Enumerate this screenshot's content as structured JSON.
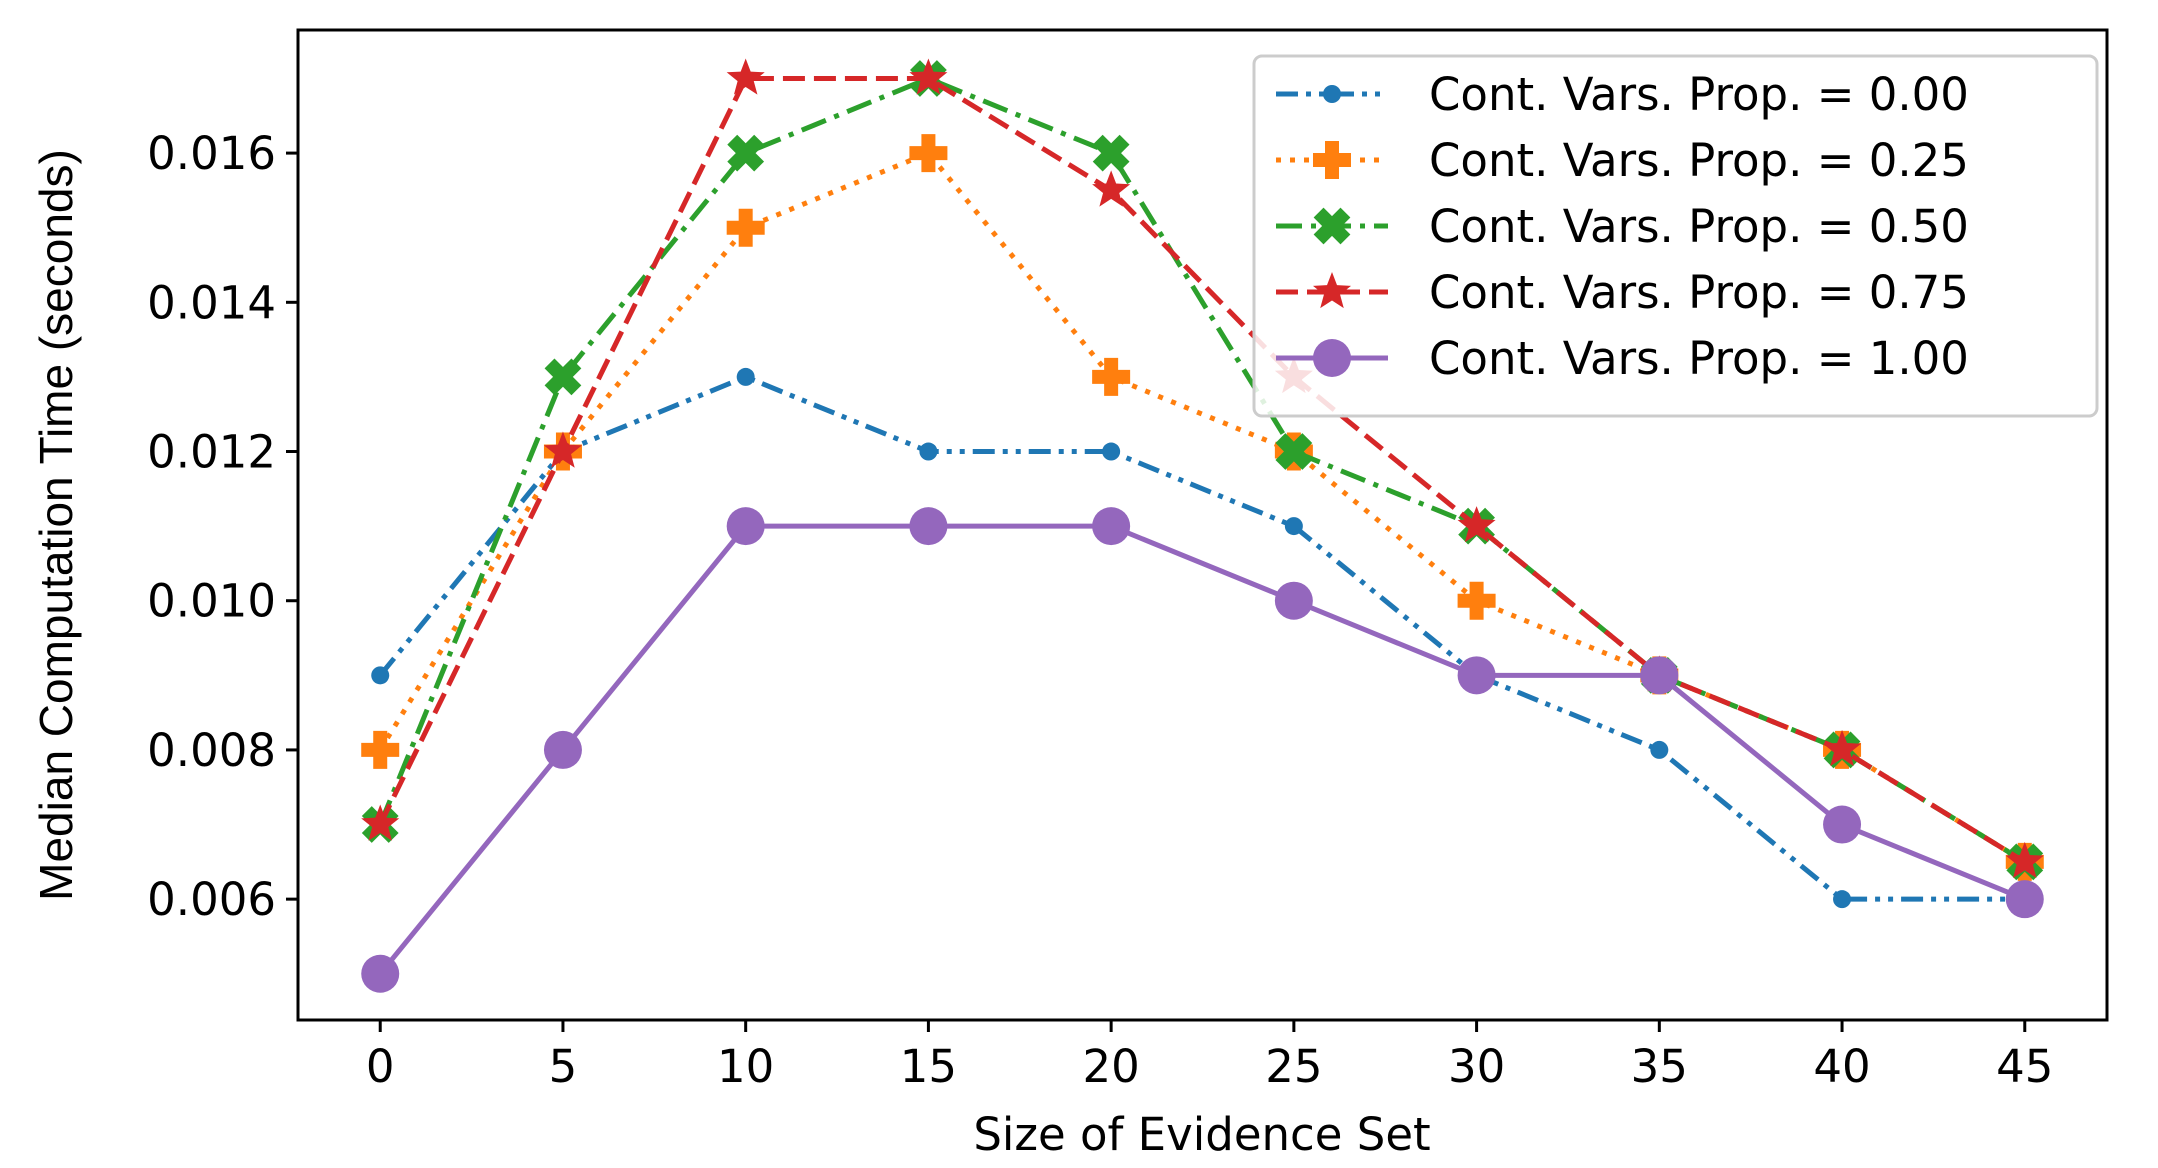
{
  "chart_data": {
    "type": "line",
    "title": "",
    "xlabel": "Size of Evidence Set",
    "ylabel": "Median Computation Time (seconds)",
    "x": [
      0,
      5,
      10,
      15,
      20,
      25,
      30,
      35,
      40,
      45
    ],
    "xlim": [
      -2.25,
      47.25
    ],
    "ylim": [
      0.00438,
      0.01765
    ],
    "xticks": [
      0,
      5,
      10,
      15,
      20,
      25,
      30,
      35,
      40,
      45
    ],
    "xtick_labels": [
      "0",
      "5",
      "10",
      "15",
      "20",
      "25",
      "30",
      "35",
      "40",
      "45"
    ],
    "yticks": [
      0.006,
      0.008,
      0.01,
      0.012,
      0.014,
      0.016
    ],
    "ytick_labels": [
      "0.006",
      "0.008",
      "0.010",
      "0.012",
      "0.014",
      "0.016"
    ],
    "grid": false,
    "legend_position": "top-right",
    "series": [
      {
        "name": "Cont. Vars. Prop. = 0.00",
        "color": "#1f77b4",
        "linestyle": "dash-dot-dot",
        "marker": "small-dot",
        "values": [
          0.009,
          0.012,
          0.013,
          0.012,
          0.012,
          0.011,
          0.009,
          0.008,
          0.006,
          0.006
        ]
      },
      {
        "name": "Cont. Vars. Prop. = 0.25",
        "color": "#ff7f0e",
        "linestyle": "dotted",
        "marker": "plus-filled",
        "values": [
          0.008,
          0.012,
          0.015,
          0.016,
          0.013,
          0.012,
          0.01,
          0.009,
          0.008,
          0.0065
        ]
      },
      {
        "name": "Cont. Vars. Prop. = 0.50",
        "color": "#2ca02c",
        "linestyle": "dash-dot",
        "marker": "x-filled",
        "values": [
          0.007,
          0.013,
          0.016,
          0.017,
          0.016,
          0.012,
          0.011,
          0.009,
          0.008,
          0.0065
        ]
      },
      {
        "name": "Cont. Vars. Prop. = 0.75",
        "color": "#d62728",
        "linestyle": "dashed",
        "marker": "star",
        "values": [
          0.007,
          0.012,
          0.017,
          0.017,
          0.0155,
          0.013,
          0.011,
          0.009,
          0.008,
          0.0065
        ]
      },
      {
        "name": "Cont. Vars. Prop. = 1.00",
        "color": "#9467bd",
        "linestyle": "solid",
        "marker": "circle",
        "values": [
          0.005,
          0.008,
          0.011,
          0.011,
          0.011,
          0.01,
          0.009,
          0.009,
          0.007,
          0.006
        ]
      }
    ]
  }
}
